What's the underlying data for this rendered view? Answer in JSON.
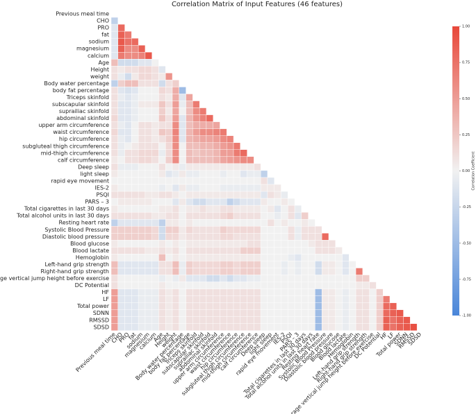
{
  "chart_data": {
    "type": "heatmap",
    "title": "Correlation Matrix of Input Features (46 features)",
    "categories": [
      "Previous meal time",
      "CHO",
      "PRO",
      "fat",
      "sodium",
      "magnesium",
      "calcium",
      "Age",
      "Height",
      "weight",
      "Body water percentage",
      "body fat percentage",
      "Triceps skinfold",
      "subscapular skinfold",
      "suprailiac skinfold",
      "abdominal skinfold",
      "upper arm circumference",
      "waist circumference",
      "hip circumference",
      "subgluteal thigh circumference",
      "mid-thigh circumference",
      "calf circumference",
      "Deep sleep",
      "light sleep",
      "rapid eye movement",
      "IES-2",
      "PSQI",
      "PARS – 3",
      "Total cigarettes in last 30 days",
      "Total alcohol units in last 30 days",
      "Resting heart rate",
      "Systolic Blood Pressure",
      "Diastolic blood pressure",
      "Blood glucose",
      "Blood lactate",
      "Hemoglobin",
      "Left-hand grip strength",
      "Right-hand grip strength",
      "Average vertical jump height before exercise",
      "DC Potential",
      "HF",
      "LF",
      "Total power",
      "SDNN",
      "RMSSD",
      "SDSD"
    ],
    "values": [
      [],
      [
        -0.3
      ],
      [
        -0.1,
        0.8
      ],
      [
        -0.1,
        0.85,
        0.7
      ],
      [
        -0.1,
        0.9,
        0.75,
        0.8
      ],
      [
        -0.1,
        0.85,
        0.6,
        0.6,
        0.85
      ],
      [
        -0.1,
        0.7,
        0.6,
        0.6,
        0.65,
        0.9
      ],
      [
        0.3,
        -0.2,
        -0.2,
        -0.2,
        -0.1,
        -0.1,
        0
      ],
      [
        0.1,
        0.05,
        0.1,
        0.1,
        0.15,
        0.15,
        0.1,
        -0.1
      ],
      [
        0.1,
        -0.05,
        -0.2,
        0.05,
        0.15,
        0.15,
        0.1,
        0.05,
        0.55
      ],
      [
        -0.3,
        0.2,
        0.3,
        0.3,
        0.1,
        0.1,
        0.1,
        -0.2,
        0.1,
        0.2
      ],
      [
        0.1,
        -0.1,
        -0.15,
        -0.1,
        0,
        0,
        0,
        0.15,
        0.1,
        0.4,
        -0.5
      ],
      [
        0.1,
        -0.05,
        -0.1,
        -0.05,
        0,
        0,
        0,
        0.1,
        0.05,
        0.4,
        -0.1,
        0.45
      ],
      [
        0.1,
        -0.1,
        -0.1,
        -0.05,
        0.05,
        0.05,
        0.05,
        0.25,
        0.1,
        0.5,
        -0.05,
        0.3,
        0.7
      ],
      [
        0.1,
        -0.1,
        -0.1,
        -0.05,
        0,
        0,
        0,
        0.2,
        0.05,
        0.45,
        0,
        0.3,
        0.6,
        0.7
      ],
      [
        0.15,
        -0.1,
        -0.1,
        -0.05,
        0,
        0,
        0,
        0.25,
        0.1,
        0.5,
        -0.1,
        0.35,
        0.55,
        0.65,
        0.8
      ],
      [
        0.1,
        -0.05,
        -0.1,
        0,
        0.1,
        0.1,
        0.05,
        0.1,
        0.1,
        0.6,
        -0.1,
        0.3,
        0.4,
        0.4,
        0.4,
        0.45
      ],
      [
        0.15,
        -0.1,
        -0.1,
        0,
        0.1,
        0.1,
        0.05,
        0.25,
        0.2,
        0.65,
        -0.1,
        0.35,
        0.5,
        0.6,
        0.6,
        0.65,
        0.7
      ],
      [
        0.1,
        -0.05,
        -0.1,
        0,
        0.1,
        0.1,
        0.05,
        0.1,
        0.2,
        0.6,
        -0.1,
        0.35,
        0.4,
        0.45,
        0.45,
        0.5,
        0.6,
        0.65
      ],
      [
        0.1,
        -0.05,
        0,
        0.05,
        0.1,
        0.1,
        0.1,
        0,
        0.15,
        0.6,
        0,
        0.3,
        0.3,
        0.35,
        0.35,
        0.4,
        0.5,
        0.55,
        0.7
      ],
      [
        0.1,
        -0.05,
        0.1,
        0.1,
        0.15,
        0.15,
        0.15,
        -0.05,
        0.15,
        0.6,
        0,
        0.3,
        0.25,
        0.3,
        0.3,
        0.35,
        0.5,
        0.5,
        0.7,
        0.8
      ],
      [
        0.05,
        0,
        0.1,
        0.1,
        0.15,
        0.15,
        0.1,
        0,
        0.2,
        0.6,
        0,
        0.3,
        0.3,
        0.3,
        0.3,
        0.35,
        0.45,
        0.5,
        0.55,
        0.6,
        0.6
      ],
      [
        0.1,
        -0.05,
        -0.05,
        -0.05,
        0,
        0,
        0,
        0.1,
        0,
        0.05,
        -0.05,
        0.05,
        0.05,
        0.05,
        0.05,
        0.05,
        0.05,
        0.05,
        0.05,
        0.05,
        0.05,
        0.1
      ],
      [
        0.05,
        0,
        0,
        0,
        0,
        0,
        0,
        0.05,
        -0.1,
        -0.05,
        0.05,
        -0.05,
        -0.05,
        0,
        0,
        0,
        -0.05,
        0,
        0,
        -0.1,
        -0.05,
        -0.05,
        -0.3
      ],
      [
        0,
        0,
        0,
        0,
        0,
        0,
        0,
        0,
        0,
        0,
        0,
        0,
        0,
        0,
        0,
        0,
        0,
        0,
        0,
        0,
        0,
        0,
        0.1,
        -0.1
      ],
      [
        0.05,
        0,
        0,
        0,
        0,
        0,
        0,
        -0.05,
        0,
        -0.1,
        0.05,
        -0.05,
        -0.05,
        0,
        0,
        0,
        -0.05,
        -0.05,
        -0.05,
        -0.05,
        -0.05,
        -0.05,
        0.05,
        0.05,
        0.05
      ],
      [
        0.1,
        0.1,
        0.1,
        0.1,
        0.1,
        0.05,
        0.05,
        0.1,
        0.1,
        0.05,
        0,
        0.05,
        0.05,
        0.05,
        0.05,
        0.05,
        0.05,
        0.05,
        0.05,
        0.05,
        0.05,
        0.05,
        -0.1,
        0.1,
        0.05,
        -0.05
      ],
      [
        0,
        0.05,
        0.05,
        0.05,
        0.05,
        0.05,
        0,
        0,
        0,
        -0.1,
        0.05,
        -0.1,
        -0.2,
        -0.2,
        -0.1,
        -0.1,
        -0.1,
        -0.3,
        -0.2,
        -0.1,
        -0.1,
        -0.1,
        0.05,
        0,
        0,
        0.05,
        0
      ],
      [
        0.05,
        0,
        0,
        0,
        0,
        0,
        0,
        0.05,
        0.05,
        0.1,
        0,
        0.05,
        0.05,
        0.1,
        0.05,
        0.05,
        0.1,
        0.1,
        0.05,
        0.05,
        0.05,
        0.05,
        0,
        0.05,
        -0.1,
        0,
        0.1,
        -0.05
      ],
      [
        0.1,
        0.1,
        0.1,
        0.1,
        0.1,
        0.1,
        0.05,
        0.05,
        0.1,
        0.1,
        0,
        0.1,
        0.1,
        0.1,
        0.1,
        0.1,
        0.15,
        0.2,
        0.1,
        0.1,
        0.1,
        0.1,
        0,
        0,
        -0.05,
        0,
        0.1,
        -0.1,
        0.2
      ],
      [
        -0.3,
        -0.1,
        -0.1,
        -0.1,
        -0.1,
        -0.1,
        -0.1,
        -0.3,
        0.05,
        0.05,
        0,
        0.05,
        0,
        0,
        0,
        0,
        0,
        0,
        0,
        0,
        0,
        0,
        0,
        0.1,
        0,
        0.05,
        0,
        0,
        0.05,
        0
      ],
      [
        0.2,
        0.2,
        0.2,
        0.2,
        0.2,
        0.2,
        0.15,
        -0.2,
        0.2,
        0.2,
        0.05,
        0.15,
        0.1,
        0.1,
        0.1,
        0.1,
        0.2,
        0.15,
        0.15,
        0.15,
        0.15,
        0.15,
        0,
        0,
        0,
        0,
        0.1,
        -0.05,
        0.1,
        0.1,
        0.1
      ],
      [
        0.2,
        0.2,
        0.2,
        0.2,
        0.2,
        0.2,
        0.15,
        -0.2,
        0.15,
        0.15,
        0.05,
        0.1,
        0.1,
        0.1,
        0.1,
        0.1,
        0.15,
        0.15,
        0.1,
        0.1,
        0.1,
        0.1,
        0,
        0,
        0,
        0,
        0.1,
        -0.05,
        0.1,
        0.1,
        0.1,
        0.8
      ],
      [
        0.05,
        0,
        0,
        0,
        0,
        0,
        0,
        0.05,
        0,
        0.05,
        0,
        0.05,
        0.05,
        0.05,
        0.05,
        0.05,
        0.05,
        0.05,
        0.05,
        0.05,
        0.1,
        0.1,
        0,
        0,
        0,
        0,
        0,
        0,
        0,
        0.05,
        0.1,
        0.1,
        0.1
      ],
      [
        0.1,
        0.1,
        0.1,
        0.1,
        0.1,
        0.05,
        0.05,
        0.1,
        0.05,
        0.1,
        0,
        0.1,
        0.1,
        0.1,
        0.1,
        0.1,
        0.1,
        0.1,
        0.1,
        0.2,
        0.2,
        0.2,
        0,
        0,
        0,
        0,
        0,
        0,
        0,
        0,
        0.1,
        0.1,
        0.1,
        0.05
      ],
      [
        0.05,
        0,
        0,
        0,
        0,
        0,
        0,
        0.3,
        0,
        0.05,
        0,
        0.05,
        0.05,
        0.05,
        0.05,
        0.05,
        0.05,
        0.05,
        0.05,
        0.05,
        0.05,
        0.05,
        0,
        0,
        0,
        0,
        -0.05,
        -0.1,
        0,
        0,
        0,
        0,
        0,
        0,
        -0.1
      ],
      [
        0.3,
        -0.1,
        -0.1,
        -0.1,
        -0.1,
        -0.1,
        -0.1,
        0.1,
        0.1,
        0.3,
        -0.05,
        0.2,
        0.15,
        0.15,
        0.15,
        0.15,
        0.2,
        0.2,
        0.15,
        0.2,
        0.2,
        0.2,
        0,
        0,
        0,
        -0.05,
        0,
        -0.05,
        0,
        0,
        -0.2,
        0.05,
        0.05,
        0,
        -0.1,
        0
      ],
      [
        0.3,
        -0.1,
        -0.1,
        -0.1,
        -0.1,
        -0.1,
        -0.1,
        0.1,
        0.1,
        0.3,
        -0.05,
        0.2,
        0.15,
        0.15,
        0.15,
        0.15,
        0.2,
        0.2,
        0.15,
        0.2,
        0.2,
        0.2,
        0,
        0,
        0,
        -0.05,
        0,
        -0.05,
        0,
        0,
        -0.2,
        0.05,
        0.05,
        0,
        -0.1,
        0,
        0.7
      ],
      [
        0.1,
        0,
        0,
        0,
        0,
        0,
        0,
        -0.05,
        0,
        -0.05,
        0.05,
        -0.1,
        -0.1,
        -0.1,
        -0.2,
        -0.2,
        -0.1,
        -0.2,
        -0.1,
        -0.1,
        -0.05,
        -0.05,
        0,
        0,
        0,
        0,
        0,
        0,
        0,
        0,
        0,
        0,
        0,
        0,
        0,
        0,
        0.2,
        0.2
      ],
      [
        0.1,
        0,
        0,
        0,
        0,
        0,
        0,
        0.05,
        0,
        0,
        0,
        0,
        0,
        0,
        0,
        0,
        0,
        0,
        0,
        0,
        0,
        0,
        0,
        0,
        0,
        0,
        0,
        0,
        0,
        0,
        0,
        0,
        0,
        0,
        0,
        0,
        0.05,
        0.05,
        0.1
      ],
      [
        0.5,
        -0.1,
        -0.1,
        -0.1,
        -0.05,
        -0.05,
        -0.05,
        0.1,
        0.05,
        0.1,
        0,
        0.1,
        0.1,
        0.1,
        0.1,
        0.1,
        0.1,
        0.1,
        0.1,
        0.1,
        0.1,
        0.1,
        0,
        0,
        0,
        0,
        0,
        0,
        0,
        0,
        -0.5,
        0.05,
        0.05,
        0,
        -0.05,
        0,
        0.1,
        0.1,
        0,
        0.2
      ],
      [
        0.5,
        -0.1,
        -0.1,
        -0.1,
        -0.05,
        -0.05,
        -0.05,
        0.1,
        0.05,
        0.1,
        0,
        0.1,
        0.1,
        0.1,
        0.1,
        0.1,
        0.1,
        0.1,
        0.1,
        0.1,
        0.1,
        0.1,
        0,
        0,
        0,
        0,
        0,
        0,
        0,
        0,
        -0.5,
        0.05,
        0.05,
        0,
        -0.05,
        0,
        0.1,
        0.1,
        0,
        0.2,
        0.7
      ],
      [
        0.5,
        -0.1,
        -0.1,
        -0.1,
        -0.05,
        -0.05,
        -0.05,
        0.1,
        0.05,
        0.1,
        0,
        0.1,
        0.1,
        0.1,
        0.1,
        0.1,
        0.1,
        0.1,
        0.1,
        0.1,
        0.1,
        0.1,
        0,
        0,
        0,
        0,
        0,
        0,
        0,
        0,
        -0.5,
        0.05,
        0.05,
        0,
        -0.05,
        0,
        0.1,
        0.1,
        0,
        0.2,
        0.8,
        0.85
      ],
      [
        0.5,
        -0.1,
        -0.1,
        -0.1,
        -0.05,
        -0.05,
        -0.05,
        0.1,
        0.05,
        0.1,
        0,
        0.1,
        0.1,
        0.1,
        0.1,
        0.1,
        0.1,
        0.1,
        0.1,
        0.1,
        0.1,
        0.1,
        0,
        0,
        0,
        0,
        0,
        0,
        0,
        0,
        -0.5,
        0.05,
        0.05,
        0,
        -0.05,
        0,
        0.1,
        0.1,
        0,
        0.2,
        0.8,
        0.85,
        0.9
      ],
      [
        0.5,
        -0.1,
        -0.1,
        -0.1,
        -0.05,
        -0.05,
        -0.05,
        0.1,
        0.05,
        0.1,
        0,
        0.1,
        0.1,
        0.1,
        0.1,
        0.1,
        0.1,
        0.1,
        0.1,
        0.1,
        0.1,
        0.1,
        0,
        0,
        0,
        0,
        0,
        0,
        0,
        0,
        -0.5,
        0.05,
        0.05,
        0,
        -0.05,
        0,
        0.1,
        0.1,
        0,
        0.2,
        0.85,
        0.75,
        0.85,
        0.9
      ],
      [
        0.5,
        -0.1,
        -0.1,
        -0.1,
        -0.05,
        -0.05,
        -0.05,
        0.1,
        0.05,
        0.1,
        0,
        0.1,
        0.1,
        0.1,
        0.1,
        0.1,
        0.1,
        0.1,
        0.1,
        0.1,
        0.1,
        0.1,
        0,
        0,
        0,
        0,
        0,
        0,
        0,
        0,
        -0.5,
        0.05,
        0.05,
        0,
        -0.05,
        0,
        0.1,
        0.1,
        0,
        0.2,
        0.85,
        0.75,
        0.85,
        0.9,
        0.95
      ]
    ],
    "clim": [
      -1,
      1
    ],
    "colormap": [
      "#4a86d9",
      "#f1f1f1",
      "#e8483a"
    ],
    "colorbar_label": "Correlation Coefficient",
    "colorbar_ticks": [
      {
        "value": 1,
        "label": "1.00"
      },
      {
        "value": 0.75,
        "label": "0.75"
      },
      {
        "value": 0.5,
        "label": "0.50"
      },
      {
        "value": 0.25,
        "label": "0.25"
      },
      {
        "value": 0,
        "label": "0.00"
      },
      {
        "value": -0.25,
        "label": "-0.25"
      },
      {
        "value": -0.5,
        "label": "-0.50"
      },
      {
        "value": -0.75,
        "label": "-0.75"
      },
      {
        "value": -1,
        "label": "-1.00"
      }
    ]
  }
}
